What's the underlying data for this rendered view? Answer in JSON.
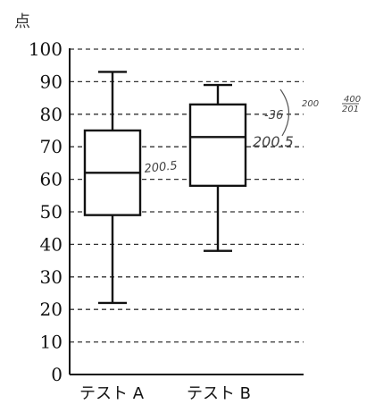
{
  "chart_data": {
    "type": "boxplot",
    "ylabel": "点",
    "ylim": [
      0,
      100
    ],
    "yticks": [
      0,
      10,
      20,
      30,
      40,
      50,
      60,
      70,
      80,
      90,
      100
    ],
    "grid": "dashed horizontal",
    "categories": [
      "テスト A",
      "テスト B"
    ],
    "boxes": [
      {
        "category": "テスト A",
        "min": 22,
        "q1": 49,
        "median": 62,
        "q3": 75,
        "max": 93
      },
      {
        "category": "テスト B",
        "min": 38,
        "q1": 58,
        "median": 73,
        "q3": 83,
        "max": 89
      }
    ],
    "annotations": [
      "200.5",
      "-36",
      "200.5",
      "200",
      "400",
      "201"
    ]
  },
  "colors": {
    "ink": "#111111",
    "grid": "#333333",
    "pencil": "#555555"
  }
}
